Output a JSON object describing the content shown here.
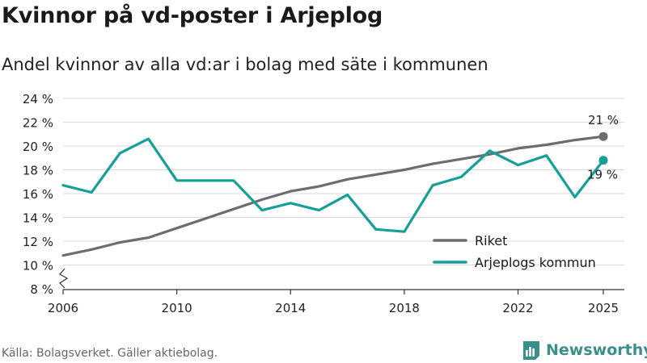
{
  "header": {
    "title": "Kvinnor på vd-poster i Arjeplog",
    "subtitle": "Andel kvinnor av alla vd:ar i bolag med säte i kommunen"
  },
  "footer": {
    "source": "Källa: Bolagsverket. Gäller aktiebolag.",
    "brand": "Newsworthy"
  },
  "colors": {
    "riket": "#6e6c73",
    "arjeplog": "#14a098",
    "grid": "#d9d9d9",
    "brand": "#3b8f8a"
  },
  "chart_data": {
    "type": "line",
    "title": "Kvinnor på vd-poster i Arjeplog",
    "subtitle": "Andel kvinnor av alla vd:ar i bolag med säte i kommunen",
    "xlabel": "",
    "ylabel": "",
    "xlim": [
      2006,
      2025
    ],
    "ylim": [
      8,
      24
    ],
    "x_ticks": [
      2006,
      2010,
      2014,
      2018,
      2022,
      2025
    ],
    "x_tick_labels": [
      "2006",
      "2010",
      "2014",
      "2018",
      "2022",
      "2025"
    ],
    "y_ticks": [
      8,
      10,
      12,
      14,
      16,
      18,
      20,
      22,
      24
    ],
    "y_tick_labels": [
      "8 %",
      "10 %",
      "12 %",
      "14 %",
      "16 %",
      "18 %",
      "20 %",
      "22 %",
      "24 %"
    ],
    "grid": true,
    "legend_position": "bottom-right",
    "x": [
      2006,
      2007,
      2008,
      2009,
      2010,
      2011,
      2012,
      2013,
      2014,
      2015,
      2016,
      2017,
      2018,
      2019,
      2020,
      2021,
      2022,
      2023,
      2024,
      2025
    ],
    "series": [
      {
        "name": "Riket",
        "values": [
          10.8,
          11.3,
          11.9,
          12.3,
          13.1,
          13.9,
          14.7,
          15.5,
          16.2,
          16.6,
          17.2,
          17.6,
          18.0,
          18.5,
          18.9,
          19.3,
          19.8,
          20.1,
          20.5,
          20.8
        ],
        "end_label": "21 %"
      },
      {
        "name": "Arjeplogs kommun",
        "values": [
          16.7,
          16.1,
          19.4,
          20.6,
          17.1,
          17.1,
          17.1,
          14.6,
          15.2,
          14.6,
          15.9,
          13.0,
          12.8,
          16.7,
          17.4,
          19.6,
          18.4,
          19.2,
          15.7,
          18.8
        ],
        "end_label": "19 %"
      }
    ]
  }
}
